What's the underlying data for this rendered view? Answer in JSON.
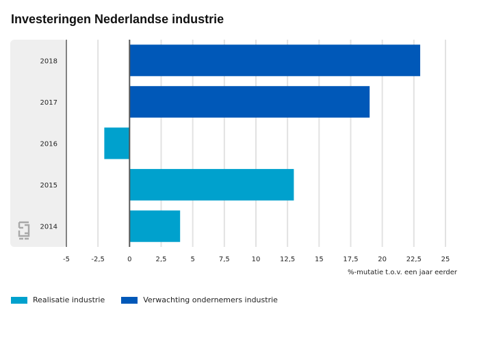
{
  "chart_data": {
    "type": "bar",
    "orientation": "horizontal",
    "title": "Investeringen Nederlandse industrie",
    "xlabel": "%-mutatie t.o.v. een jaar eerder",
    "ylabel": "",
    "categories": [
      "2018",
      "2017",
      "2016",
      "2015",
      "2014"
    ],
    "series": [
      {
        "name": "Realisatie industrie",
        "color": "#00a1cd",
        "values": [
          null,
          null,
          -2,
          13,
          4
        ]
      },
      {
        "name": "Verwachting ondernemers industrie",
        "color": "#0058b8",
        "values": [
          23,
          19,
          null,
          null,
          null
        ]
      }
    ],
    "xlim": [
      -5,
      25
    ],
    "xticks": [
      "-5",
      "-2,5",
      "0",
      "2,5",
      "5",
      "7,5",
      "10",
      "12,5",
      "15",
      "17,5",
      "20",
      "22,5",
      "25"
    ],
    "xtick_values": [
      -5,
      -2.5,
      0,
      2.5,
      5,
      7.5,
      10,
      12.5,
      15,
      17.5,
      20,
      22.5,
      25
    ],
    "grid": true,
    "legend_position": "bottom-left"
  },
  "logo": {
    "name": "cbs-logo-icon"
  }
}
